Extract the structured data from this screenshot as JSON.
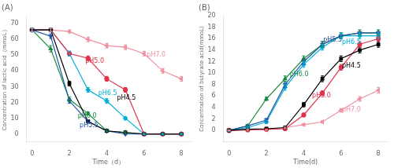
{
  "chart_data": [
    {
      "type": "line",
      "title": "(A)",
      "xlabel": "Time（d）",
      "ylabel": "Concentration of lactic acid（mmoL）",
      "xlim": [
        -0.3,
        8.5
      ],
      "ylim": [
        -5,
        75
      ],
      "xticks": [
        0,
        2,
        4,
        6,
        8
      ],
      "yticks": [
        0,
        10,
        20,
        30,
        40,
        50,
        60,
        70
      ],
      "grid": false,
      "legend": false,
      "series": [
        {
          "name": "pH4.5",
          "color": "#000000",
          "marker": "square",
          "x": [
            0,
            1,
            2,
            3,
            4,
            5,
            6,
            7,
            8
          ],
          "values": [
            66,
            66,
            32,
            8,
            2,
            1,
            0,
            0,
            0
          ],
          "yerr": [
            1,
            1,
            1.5,
            1,
            1,
            0.5,
            0.5,
            0.5,
            0.5
          ]
        },
        {
          "name": "pH5.0",
          "color": "#e0334c",
          "marker": "circle",
          "x": [
            0,
            1,
            2,
            3,
            4,
            5,
            6,
            7,
            8
          ],
          "values": [
            66,
            66,
            51,
            48,
            35,
            28,
            0,
            0,
            0
          ],
          "yerr": [
            1,
            1,
            1.5,
            1.5,
            1.5,
            1.5,
            0.5,
            0.5,
            0.5
          ]
        },
        {
          "name": "pH5.5",
          "color": "#2255aa",
          "marker": "triangle-down",
          "x": [
            0,
            1,
            2,
            3,
            4,
            5,
            6,
            7,
            8
          ],
          "values": [
            66,
            62,
            21,
            8,
            2,
            0,
            0,
            0,
            0
          ],
          "yerr": [
            1,
            1.5,
            1.5,
            1,
            0.5,
            0.5,
            0.5,
            0.5,
            0.5
          ]
        },
        {
          "name": "pH6.0",
          "color": "#1a8c3e",
          "marker": "triangle-up",
          "x": [
            0,
            1,
            2,
            3,
            4,
            5,
            6,
            7,
            8
          ],
          "values": [
            66,
            54,
            22,
            13,
            2,
            1,
            0,
            0,
            0
          ],
          "yerr": [
            1,
            2,
            1.5,
            1,
            0.5,
            0.5,
            0.5,
            0.5,
            0.5
          ]
        },
        {
          "name": "pH6.5",
          "color": "#00b0d8",
          "marker": "diamond",
          "x": [
            0,
            1,
            2,
            3,
            4,
            5,
            6,
            7,
            8
          ],
          "values": [
            66,
            66,
            51,
            28,
            21,
            10,
            0,
            0,
            0
          ],
          "yerr": [
            1,
            1,
            1.5,
            1.5,
            1.5,
            1,
            0.5,
            0.5,
            0.5
          ]
        },
        {
          "name": "pH7.0",
          "color": "#f090a0",
          "marker": "triangle-left",
          "x": [
            0,
            1,
            2,
            3,
            4,
            5,
            6,
            7,
            8
          ],
          "values": [
            66,
            66,
            65,
            60,
            56,
            55,
            51,
            40,
            35
          ],
          "yerr": [
            1,
            1,
            1,
            1.5,
            1.5,
            1.5,
            1.5,
            1.5,
            1.5
          ]
        }
      ],
      "annotations": [
        {
          "text": "pH5.0",
          "x": 2.85,
          "y": 46,
          "color": "#e0334c"
        },
        {
          "text": "pH6.5",
          "x": 3.55,
          "y": 26,
          "color": "#00b0d8"
        },
        {
          "text": "pH6.0",
          "x": 2.45,
          "y": 11.5,
          "color": "#1a8c3e"
        },
        {
          "text": "pH5.5",
          "x": 2.55,
          "y": 5.5,
          "color": "#2255aa"
        },
        {
          "text": "pH4.5",
          "x": 4.55,
          "y": 23,
          "color": "#000000"
        },
        {
          "text": "pH7.0",
          "x": 6.15,
          "y": 50,
          "color": "#f090a0"
        }
      ]
    },
    {
      "type": "line",
      "title": "(B)",
      "xlabel": "Time(d)",
      "ylabel": "Concentration of butyrate acid(mmoL)",
      "xlim": [
        -0.3,
        8.5
      ],
      "ylim": [
        -2,
        20
      ],
      "xticks": [
        0,
        2,
        4,
        6,
        8
      ],
      "yticks": [
        0,
        2,
        4,
        6,
        8,
        10,
        12,
        14,
        16,
        18,
        20
      ],
      "grid": false,
      "legend": false,
      "series": [
        {
          "name": "pH4.5",
          "color": "#000000",
          "marker": "square",
          "x": [
            0,
            1,
            2,
            3,
            4,
            5,
            6,
            7,
            8
          ],
          "values": [
            0,
            0.2,
            0.3,
            0.5,
            4.5,
            9.0,
            12.5,
            14.0,
            15.0
          ],
          "yerr": [
            0.1,
            0.1,
            0.1,
            0.2,
            0.4,
            0.5,
            0.5,
            0.5,
            0.5
          ]
        },
        {
          "name": "pH5.0",
          "color": "#e0334c",
          "marker": "circle",
          "x": [
            0,
            1,
            2,
            3,
            4,
            5,
            6,
            7,
            8
          ],
          "values": [
            0,
            0.1,
            0.2,
            0.3,
            2.7,
            6.5,
            11.0,
            15.0,
            16.0
          ],
          "yerr": [
            0.1,
            0.1,
            0.1,
            0.1,
            0.3,
            0.4,
            0.5,
            0.5,
            0.5
          ]
        },
        {
          "name": "pH5.5",
          "color": "#2255aa",
          "marker": "triangle-down",
          "x": [
            0,
            1,
            2,
            3,
            4,
            5,
            6,
            7,
            8
          ],
          "values": [
            0,
            0.8,
            1.8,
            8.0,
            12.0,
            15.0,
            16.5,
            17.0,
            17.0
          ],
          "yerr": [
            0.1,
            0.2,
            0.3,
            0.5,
            0.5,
            0.5,
            0.5,
            0.5,
            0.5
          ]
        },
        {
          "name": "pH6.0",
          "color": "#1a8c3e",
          "marker": "triangle-up",
          "x": [
            0,
            1,
            2,
            3,
            4,
            5,
            6,
            7,
            8
          ],
          "values": [
            0,
            0.8,
            5.5,
            9.0,
            12.5,
            15.0,
            16.5,
            17.0,
            17.0
          ],
          "yerr": [
            0.1,
            0.2,
            0.3,
            0.5,
            0.5,
            0.5,
            0.5,
            0.5,
            0.5
          ]
        },
        {
          "name": "pH6.5",
          "color": "#00b0d8",
          "marker": "diamond",
          "x": [
            0,
            1,
            2,
            3,
            4,
            5,
            6,
            7,
            8
          ],
          "values": [
            0,
            0.5,
            1.5,
            7.5,
            11.5,
            14.5,
            16.5,
            16.5,
            16.5
          ],
          "yerr": [
            0.1,
            0.1,
            0.3,
            0.5,
            0.5,
            0.5,
            0.5,
            0.5,
            0.5
          ]
        },
        {
          "name": "pH7.0",
          "color": "#f090a0",
          "marker": "triangle-left",
          "x": [
            0,
            1,
            2,
            3,
            4,
            5,
            6,
            7,
            8
          ],
          "values": [
            0,
            0.1,
            0.1,
            0.5,
            1.0,
            1.5,
            3.5,
            5.5,
            7.0
          ],
          "yerr": [
            0.1,
            0.1,
            0.1,
            0.1,
            0.2,
            0.2,
            0.3,
            0.4,
            0.5
          ]
        }
      ],
      "annotations": [
        {
          "text": "pH5.5",
          "x": 5.05,
          "y": 15.8,
          "color": "#2255aa"
        },
        {
          "text": "pH6.5",
          "x": 6.05,
          "y": 15.3,
          "color": "#00b0d8"
        },
        {
          "text": "pH6.0",
          "x": 3.25,
          "y": 9.8,
          "color": "#1a8c3e"
        },
        {
          "text": "pH5.0",
          "x": 4.45,
          "y": 6.1,
          "color": "#e0334c"
        },
        {
          "text": "pH4.5",
          "x": 6.05,
          "y": 11.2,
          "color": "#000000"
        },
        {
          "text": "pH7.0",
          "x": 6.05,
          "y": 3.6,
          "color": "#f090a0"
        }
      ]
    }
  ]
}
